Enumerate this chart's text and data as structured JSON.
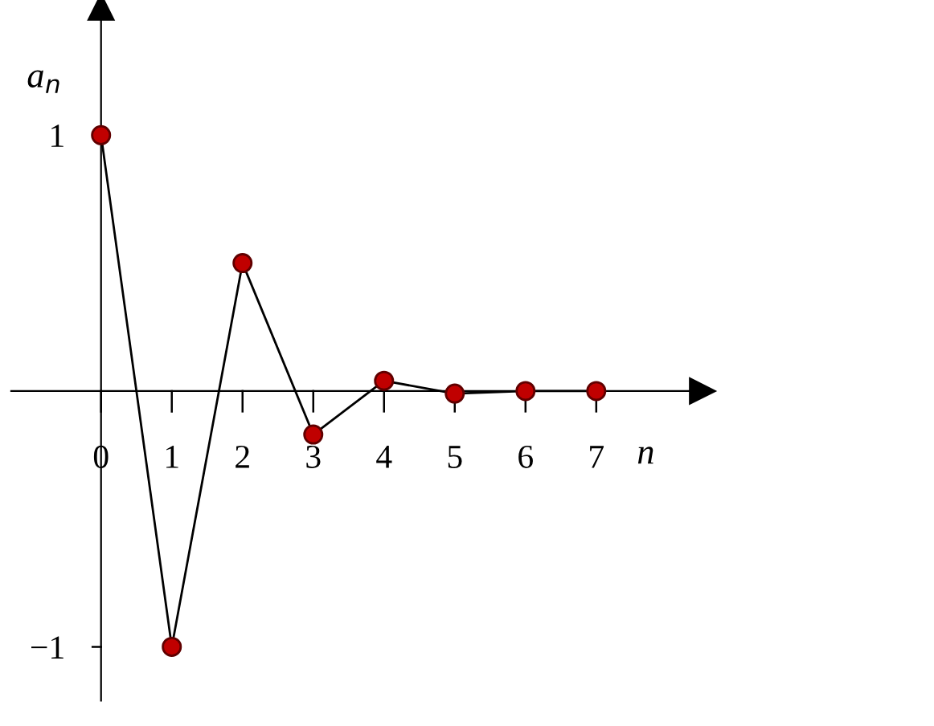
{
  "chart_data": {
    "type": "line",
    "x": [
      0,
      1,
      2,
      3,
      4,
      5,
      6,
      7
    ],
    "series": [
      {
        "color": "#c00000",
        "values": [
          1,
          -1,
          0.5,
          -0.17,
          0.04,
          -0.01,
          0,
          0
        ]
      }
    ],
    "xlim": [
      -1.27,
      8.5
    ],
    "ylim": [
      -1.21,
      1.5
    ],
    "xticks": [
      0,
      1,
      2,
      3,
      4,
      5,
      6,
      7
    ],
    "yticks": [
      {
        "value": -1,
        "label": "−1"
      },
      1
    ],
    "xlabel": "n",
    "ylabel": "a$_{n}$",
    "marker": "circle",
    "line_style": "solid",
    "grid": false
  }
}
